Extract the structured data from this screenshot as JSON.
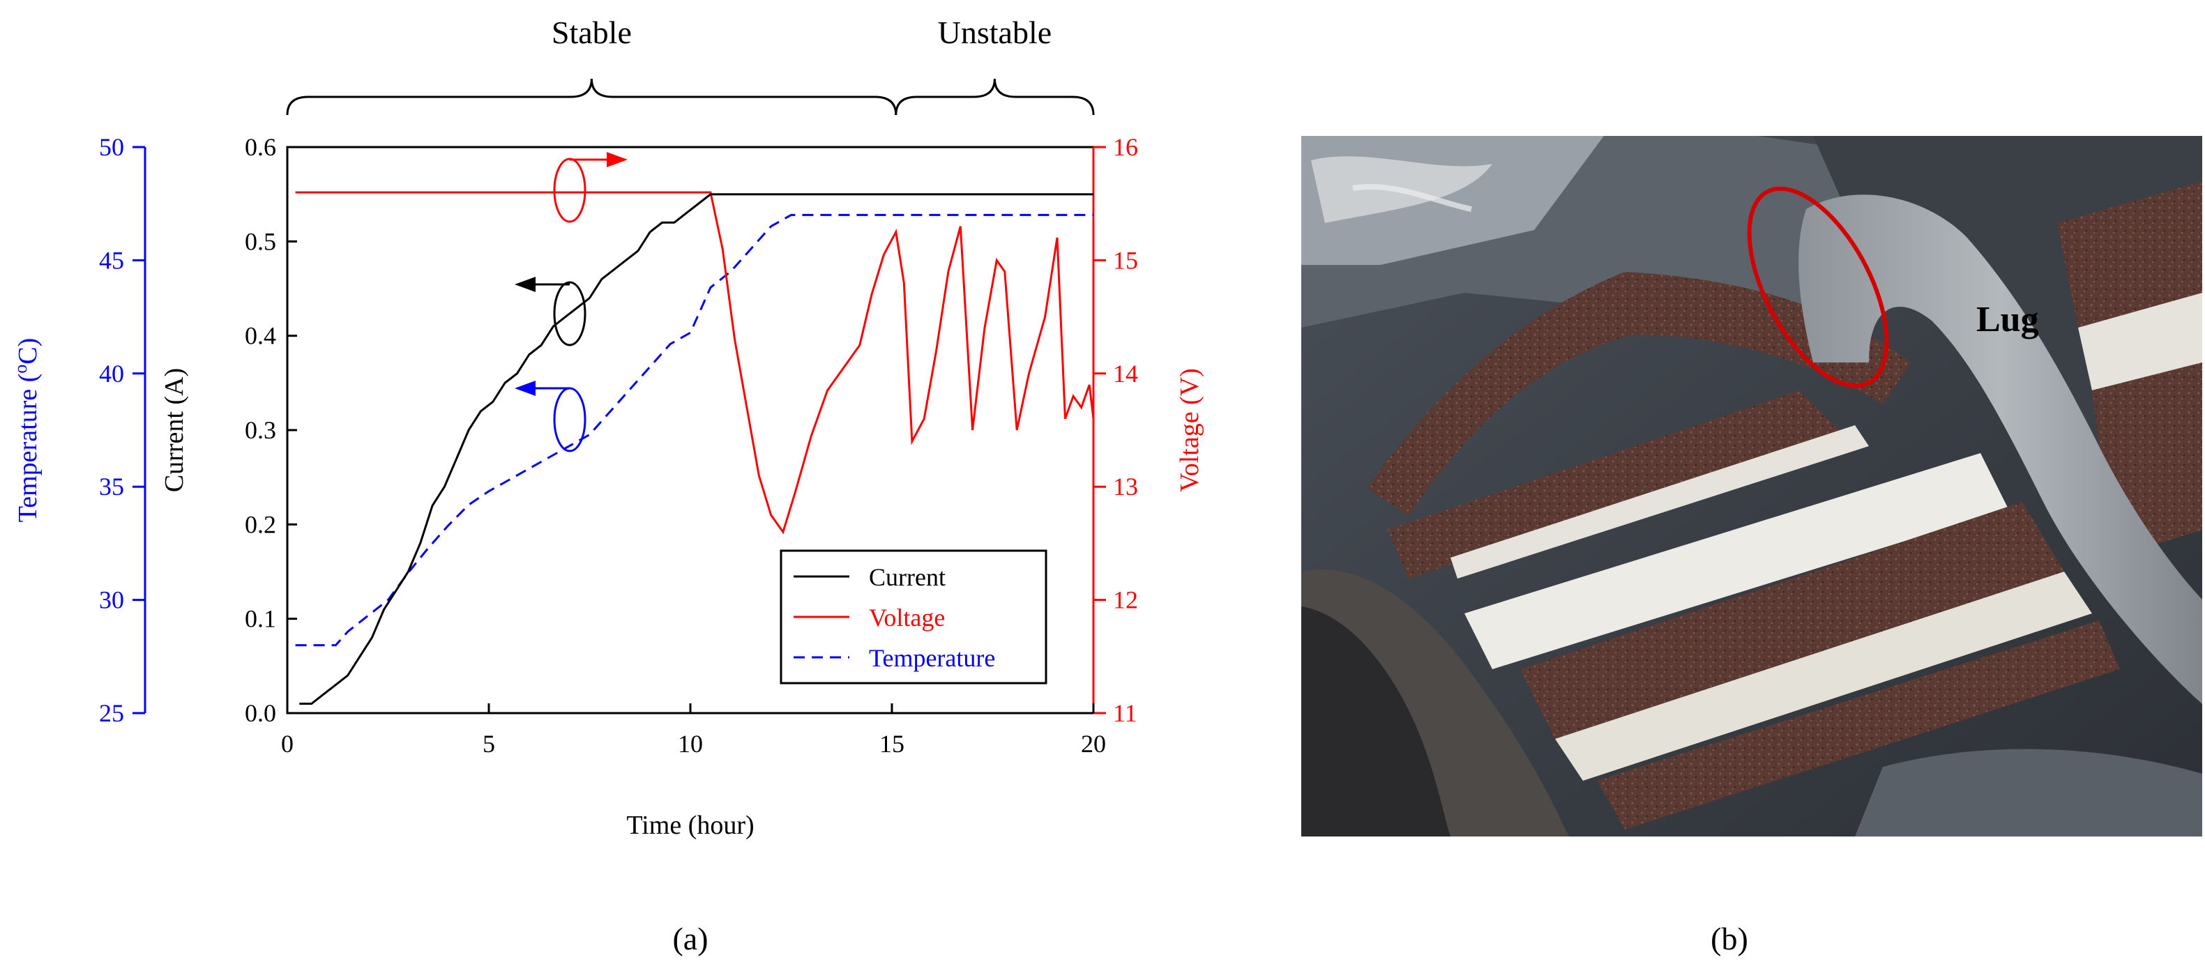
{
  "colors": {
    "current": "#000000",
    "voltage": "#ff0000",
    "temperature": "#0000ff"
  },
  "panels": {
    "left_label": "(a)",
    "right_label": "(b)"
  },
  "regions": [
    {
      "label": "Stable",
      "from": 0,
      "to": 15.1
    },
    {
      "label": "Unstable",
      "from": 15.1,
      "to": 20
    }
  ],
  "chart_data": {
    "type": "line",
    "xlabel": "Time (hour)",
    "xlim": [
      0,
      20
    ],
    "xticks": [
      0,
      5,
      10,
      15,
      20
    ],
    "grid": false,
    "legend": {
      "placement": "bottom-right"
    },
    "axes": {
      "current": {
        "label": "Current (A)",
        "range": [
          0,
          0.6
        ],
        "ticks": [
          "0.0",
          "0.1",
          "0.2",
          "0.3",
          "0.4",
          "0.5",
          "0.6"
        ],
        "side": "left"
      },
      "voltage": {
        "label": "Voltage (V)",
        "range": [
          11,
          16
        ],
        "ticks": [
          "11",
          "12",
          "13",
          "14",
          "15",
          "16"
        ],
        "side": "right"
      },
      "temperature": {
        "label": "Temperature (",
        "label_sup": "o",
        "label_end": "C)",
        "range": [
          25,
          50
        ],
        "ticks": [
          "25",
          "30",
          "35",
          "40",
          "45",
          "50"
        ],
        "side": "left-offset"
      }
    },
    "series": [
      {
        "name": "Current",
        "axis": "current",
        "style": "solid",
        "x": [
          0.3,
          0.6,
          0.9,
          1.2,
          1.5,
          1.8,
          2.1,
          2.4,
          2.7,
          3.0,
          3.3,
          3.6,
          3.9,
          4.2,
          4.5,
          4.8,
          5.1,
          5.4,
          5.7,
          6.0,
          6.3,
          6.6,
          6.9,
          7.2,
          7.5,
          7.8,
          8.1,
          8.4,
          8.7,
          9.0,
          9.3,
          9.6,
          9.9,
          10.2,
          10.5,
          11,
          13,
          15,
          17,
          19,
          20
        ],
        "y": [
          0.01,
          0.01,
          0.02,
          0.03,
          0.04,
          0.06,
          0.08,
          0.11,
          0.13,
          0.15,
          0.18,
          0.22,
          0.24,
          0.27,
          0.3,
          0.32,
          0.33,
          0.35,
          0.36,
          0.38,
          0.39,
          0.41,
          0.42,
          0.43,
          0.44,
          0.46,
          0.47,
          0.48,
          0.49,
          0.51,
          0.52,
          0.52,
          0.53,
          0.54,
          0.55,
          0.55,
          0.55,
          0.55,
          0.55,
          0.55,
          0.55
        ]
      },
      {
        "name": "Voltage",
        "axis": "voltage",
        "style": "solid",
        "x": [
          0.2,
          2,
          4,
          6,
          8,
          10,
          10.5,
          10.8,
          11.1,
          11.4,
          11.7,
          12.0,
          12.3,
          12.6,
          13.0,
          13.4,
          13.8,
          14.2,
          14.5,
          14.8,
          15.1,
          15.3,
          15.5,
          15.8,
          16.1,
          16.4,
          16.7,
          17.0,
          17.3,
          17.6,
          17.8,
          18.1,
          18.4,
          18.8,
          19.1,
          19.3,
          19.5,
          19.7,
          19.9,
          20
        ],
        "y": [
          15.6,
          15.6,
          15.6,
          15.6,
          15.6,
          15.6,
          15.6,
          15.1,
          14.3,
          13.7,
          13.1,
          12.75,
          12.6,
          12.95,
          13.45,
          13.85,
          14.05,
          14.25,
          14.7,
          15.05,
          15.25,
          14.8,
          13.4,
          13.6,
          14.2,
          14.9,
          15.3,
          13.5,
          14.4,
          15.0,
          14.9,
          13.5,
          14.0,
          14.5,
          15.2,
          13.6,
          13.8,
          13.7,
          13.9,
          13.6
        ]
      },
      {
        "name": "Temperature",
        "axis": "temperature",
        "style": "dashed",
        "x": [
          0.2,
          1.2,
          1.5,
          2.0,
          2.5,
          3.0,
          3.5,
          4.0,
          4.5,
          5.0,
          5.5,
          6.0,
          6.5,
          7.0,
          7.5,
          8.0,
          8.5,
          9.0,
          9.5,
          10.0,
          10.5,
          11.0,
          11.5,
          12.0,
          12.5,
          13,
          15,
          17,
          19,
          20
        ],
        "y": [
          28.0,
          28.0,
          28.6,
          29.3,
          30.0,
          31.2,
          32.3,
          33.3,
          34.2,
          34.8,
          35.3,
          35.8,
          36.3,
          36.8,
          37.3,
          38.3,
          39.3,
          40.3,
          41.3,
          41.8,
          43.8,
          44.5,
          45.5,
          46.5,
          47.0,
          47.0,
          47.0,
          47.0,
          47.0,
          47.0
        ]
      }
    ]
  }
}
